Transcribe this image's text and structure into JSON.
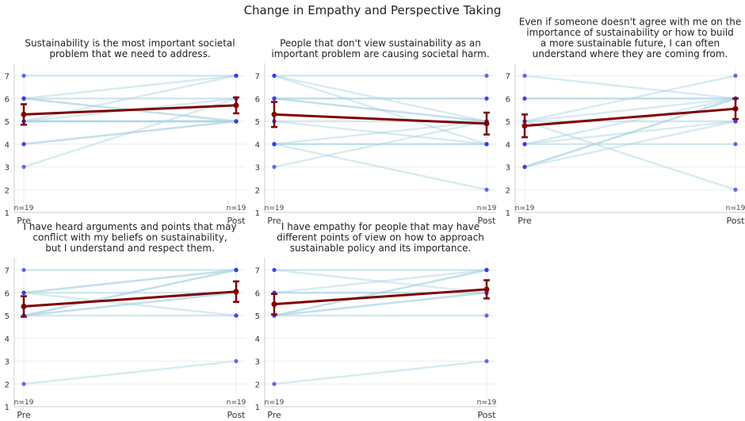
{
  "title": "Change in Empathy and Perspective Taking",
  "colors": {
    "individual_line": "#a8d2e3",
    "point_pre": "#3a3af0",
    "point_post": "#3a3af0",
    "mean_line": "#7f0000",
    "grid": "#eeeeee",
    "axis": "#cccccc"
  },
  "chart_data": [
    {
      "type": "line",
      "title": "Sustainability is the most important societal problem that we need to address.",
      "title_lines": [
        "Sustainability is the most important societal",
        "problem that we need to address."
      ],
      "categories": [
        "Pre",
        "Post"
      ],
      "ylim": [
        1,
        7.4
      ],
      "yticks": [
        1,
        2,
        3,
        4,
        5,
        6,
        7
      ],
      "n_labels": [
        "n=19",
        "n=19"
      ],
      "pairs": [
        [
          7,
          7
        ],
        [
          6,
          7
        ],
        [
          6,
          6
        ],
        [
          6,
          5
        ],
        [
          6,
          5
        ],
        [
          5,
          7
        ],
        [
          5,
          6
        ],
        [
          5,
          5
        ],
        [
          5,
          5
        ],
        [
          5,
          5
        ],
        [
          5,
          5
        ],
        [
          4,
          5
        ],
        [
          4,
          5
        ],
        [
          3,
          6
        ]
      ],
      "mean": [
        5.3,
        5.7
      ],
      "error": [
        0.45,
        0.35
      ],
      "grid": true
    },
    {
      "type": "line",
      "title": "People that don't view sustainability as an important problem are causing societal harm.",
      "title_lines": [
        "People that don't view sustainability as an",
        "important problem are causing societal harm."
      ],
      "categories": [
        "Pre",
        "Post"
      ],
      "ylim": [
        1,
        7.4
      ],
      "yticks": [
        1,
        2,
        3,
        4,
        5,
        6,
        7
      ],
      "n_labels": [
        "n=19",
        "n=19"
      ],
      "pairs": [
        [
          7,
          7
        ],
        [
          7,
          5
        ],
        [
          7,
          4
        ],
        [
          6,
          6
        ],
        [
          6,
          6
        ],
        [
          6,
          5
        ],
        [
          6,
          5
        ],
        [
          5,
          5
        ],
        [
          5,
          4
        ],
        [
          4,
          5
        ],
        [
          4,
          4
        ],
        [
          4,
          4
        ],
        [
          4,
          2
        ],
        [
          3,
          5
        ]
      ],
      "mean": [
        5.3,
        4.9
      ],
      "error": [
        0.55,
        0.48
      ],
      "grid": true
    },
    {
      "type": "line",
      "title": "Even if someone doesn't agree with me on the importance of sustainability or how to build a more sustainable future, I can often understand where they are coming from.",
      "title_lines": [
        "Even if someone doesn't agree with me on the",
        "importance of sustainability or how to build",
        "a more sustainable future, I can often",
        "understand where they are coming from."
      ],
      "categories": [
        "Pre",
        "Post"
      ],
      "ylim": [
        1,
        7.4
      ],
      "yticks": [
        1,
        2,
        3,
        4,
        5,
        6,
        7
      ],
      "n_labels": [
        "n=19",
        "n=19"
      ],
      "pairs": [
        [
          7,
          6
        ],
        [
          6,
          6
        ],
        [
          6,
          6
        ],
        [
          5,
          7
        ],
        [
          5,
          6
        ],
        [
          5,
          5
        ],
        [
          5,
          2
        ],
        [
          4,
          6
        ],
        [
          4,
          5
        ],
        [
          4,
          4
        ],
        [
          3,
          6
        ],
        [
          3,
          6
        ],
        [
          3,
          5
        ]
      ],
      "mean": [
        4.8,
        5.55
      ],
      "error": [
        0.5,
        0.45
      ],
      "grid": true
    },
    {
      "type": "line",
      "title": "I have heard arguments and points that may conflict with my beliefs on sustainability, but I understand and respect them.",
      "title_lines": [
        "I have heard arguments and points that may",
        "conflict with my beliefs on sustainability,",
        "but I understand and respect them."
      ],
      "categories": [
        "Pre",
        "Post"
      ],
      "ylim": [
        1,
        7.4
      ],
      "yticks": [
        1,
        2,
        3,
        4,
        5,
        6,
        7
      ],
      "n_labels": [
        "n=19",
        "n=19"
      ],
      "pairs": [
        [
          7,
          7
        ],
        [
          6,
          7
        ],
        [
          6,
          7
        ],
        [
          6,
          6
        ],
        [
          6,
          5
        ],
        [
          5,
          7
        ],
        [
          5,
          7
        ],
        [
          5,
          6
        ],
        [
          5,
          6
        ],
        [
          5,
          5
        ],
        [
          2,
          3
        ]
      ],
      "mean": [
        5.4,
        6.05
      ],
      "error": [
        0.45,
        0.45
      ],
      "grid": true
    },
    {
      "type": "line",
      "title": "I have empathy for people that may have different points of view on how to approach sustainable policy and its importance.",
      "title_lines": [
        "I have empathy for people that may have",
        "different points of view on how to approach",
        "sustainable policy and its importance."
      ],
      "categories": [
        "Pre",
        "Post"
      ],
      "ylim": [
        1,
        7.4
      ],
      "yticks": [
        1,
        2,
        3,
        4,
        5,
        6,
        7
      ],
      "n_labels": [
        "n=19",
        "n=19"
      ],
      "pairs": [
        [
          7,
          7
        ],
        [
          7,
          6
        ],
        [
          6,
          7
        ],
        [
          6,
          6
        ],
        [
          6,
          6
        ],
        [
          5,
          7
        ],
        [
          5,
          7
        ],
        [
          5,
          6
        ],
        [
          5,
          6
        ],
        [
          5,
          5
        ],
        [
          2,
          3
        ]
      ],
      "mean": [
        5.5,
        6.15
      ],
      "error": [
        0.45,
        0.4
      ],
      "grid": true
    }
  ]
}
